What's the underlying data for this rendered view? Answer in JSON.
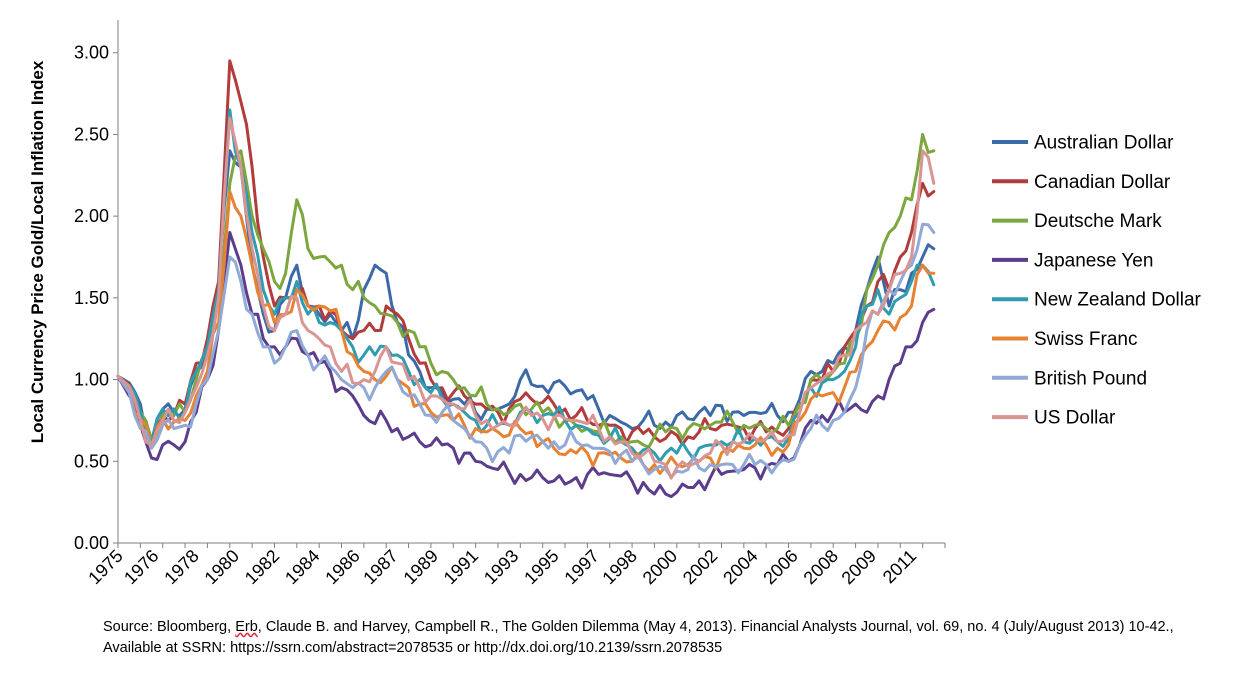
{
  "chart_data": {
    "type": "line",
    "title": "",
    "xlabel": "",
    "ylabel": "Local Currency Price Gold/Local Inflation Index",
    "ylim": [
      0,
      3.2
    ],
    "yticks": [
      "0.00",
      "0.50",
      "1.00",
      "1.50",
      "2.00",
      "2.50",
      "3.00"
    ],
    "ytick_values": [
      0,
      0.5,
      1.0,
      1.5,
      2.0,
      2.5,
      3.0
    ],
    "xlim": [
      1975.0,
      2012.0
    ],
    "xtick_labels": [
      "1975",
      "1976",
      "1978",
      "1980",
      "1982",
      "1984",
      "1986",
      "1987",
      "1989",
      "1991",
      "1993",
      "1995",
      "1997",
      "1998",
      "2000",
      "2002",
      "2004",
      "2006",
      "2008",
      "2009",
      "2011"
    ],
    "xtick_values": [
      1975.0,
      1976.6,
      1978.4,
      1980.2,
      1982.0,
      1983.8,
      1985.6,
      1987.3,
      1989.1,
      1990.9,
      1992.7,
      1994.5,
      1996.3,
      1998.0,
      1999.8,
      2001.6,
      2003.4,
      2005.2,
      2007.0,
      2008.7,
      2010.5
    ],
    "grid": false,
    "legend_position": "right",
    "x": [
      1975.0,
      1975.5,
      1976.0,
      1976.5,
      1977.0,
      1977.5,
      1978.0,
      1978.5,
      1979.0,
      1979.5,
      1980.0,
      1980.5,
      1981.0,
      1981.5,
      1982.0,
      1982.5,
      1983.0,
      1983.5,
      1984.0,
      1984.5,
      1985.0,
      1985.5,
      1986.0,
      1986.5,
      1987.0,
      1987.5,
      1988.0,
      1988.5,
      1989.0,
      1989.5,
      1990.0,
      1990.5,
      1991.0,
      1991.5,
      1992.0,
      1992.5,
      1993.0,
      1993.5,
      1994.0,
      1994.5,
      1995.0,
      1995.5,
      1996.0,
      1996.5,
      1997.0,
      1997.5,
      1998.0,
      1998.5,
      1999.0,
      1999.5,
      2000.0,
      2000.5,
      2001.0,
      2001.5,
      2002.0,
      2002.5,
      2003.0,
      2003.5,
      2004.0,
      2004.5,
      2005.0,
      2005.5,
      2006.0,
      2006.5,
      2007.0,
      2007.5,
      2008.0,
      2008.5,
      2009.0,
      2009.5,
      2010.0,
      2010.5,
      2011.0,
      2011.5
    ],
    "series": [
      {
        "name": "Australian Dollar",
        "color": "#3c6aa9",
        "values": [
          1.02,
          0.98,
          0.85,
          0.62,
          0.82,
          0.8,
          0.82,
          1.05,
          1.2,
          1.55,
          2.4,
          2.3,
          1.7,
          1.4,
          1.3,
          1.5,
          1.7,
          1.45,
          1.4,
          1.4,
          1.3,
          1.25,
          1.55,
          1.7,
          1.65,
          1.35,
          1.15,
          1.05,
          0.95,
          0.92,
          0.88,
          0.85,
          0.8,
          0.82,
          0.82,
          0.85,
          1.0,
          0.97,
          0.96,
          0.98,
          0.96,
          0.93,
          0.88,
          0.82,
          0.78,
          0.74,
          0.7,
          0.75,
          0.72,
          0.74,
          0.78,
          0.76,
          0.8,
          0.78,
          0.84,
          0.8,
          0.78,
          0.8,
          0.8,
          0.78,
          0.8,
          0.88,
          1.05,
          1.05,
          1.1,
          1.2,
          1.3,
          1.55,
          1.75,
          1.45,
          1.55,
          1.65,
          1.75,
          1.8
        ]
      },
      {
        "name": "Canadian Dollar",
        "color": "#b23b3b",
        "values": [
          1.02,
          0.97,
          0.78,
          0.6,
          0.78,
          0.78,
          0.85,
          1.1,
          1.25,
          1.6,
          2.95,
          2.7,
          2.3,
          1.75,
          1.45,
          1.5,
          1.55,
          1.45,
          1.45,
          1.42,
          1.3,
          1.25,
          1.3,
          1.3,
          1.45,
          1.4,
          1.25,
          1.1,
          1.0,
          0.95,
          0.92,
          0.9,
          0.85,
          0.82,
          0.8,
          0.82,
          0.88,
          0.88,
          0.86,
          0.85,
          0.82,
          0.78,
          0.75,
          0.72,
          0.72,
          0.7,
          0.68,
          0.67,
          0.65,
          0.64,
          0.66,
          0.65,
          0.68,
          0.7,
          0.72,
          0.72,
          0.7,
          0.7,
          0.68,
          0.68,
          0.7,
          0.85,
          1.0,
          1.0,
          1.05,
          1.2,
          1.3,
          1.45,
          1.6,
          1.55,
          1.75,
          1.9,
          2.2,
          2.15
        ]
      },
      {
        "name": "Deutsche Mark",
        "color": "#7ca73e",
        "values": [
          1.02,
          0.95,
          0.8,
          0.63,
          0.8,
          0.78,
          0.8,
          1.0,
          1.2,
          1.5,
          2.2,
          2.4,
          2.0,
          1.8,
          1.6,
          1.65,
          2.1,
          1.8,
          1.75,
          1.72,
          1.7,
          1.55,
          1.5,
          1.45,
          1.4,
          1.35,
          1.3,
          1.2,
          1.1,
          1.05,
          1.0,
          0.95,
          0.9,
          0.85,
          0.82,
          0.8,
          0.85,
          0.82,
          0.8,
          0.78,
          0.75,
          0.72,
          0.7,
          0.68,
          0.66,
          0.65,
          0.62,
          0.6,
          0.65,
          0.68,
          0.7,
          0.7,
          0.72,
          0.72,
          0.74,
          0.74,
          0.72,
          0.72,
          0.7,
          0.7,
          0.72,
          0.85,
          1.0,
          1.0,
          1.05,
          1.1,
          1.25,
          1.55,
          1.7,
          1.9,
          2.0,
          2.1,
          2.5,
          2.4
        ]
      },
      {
        "name": "Japanese Yen",
        "color": "#5b3d8c",
        "values": [
          1.02,
          0.9,
          0.72,
          0.52,
          0.6,
          0.6,
          0.62,
          0.8,
          1.0,
          1.3,
          1.9,
          1.7,
          1.4,
          1.25,
          1.2,
          1.2,
          1.25,
          1.15,
          1.1,
          1.05,
          0.95,
          0.9,
          0.78,
          0.73,
          0.75,
          0.7,
          0.65,
          0.62,
          0.6,
          0.6,
          0.58,
          0.55,
          0.5,
          0.47,
          0.45,
          0.43,
          0.42,
          0.4,
          0.4,
          0.38,
          0.36,
          0.4,
          0.42,
          0.42,
          0.42,
          0.41,
          0.38,
          0.37,
          0.3,
          0.3,
          0.31,
          0.34,
          0.38,
          0.4,
          0.42,
          0.44,
          0.45,
          0.46,
          0.47,
          0.48,
          0.5,
          0.6,
          0.75,
          0.78,
          0.8,
          0.8,
          0.85,
          0.8,
          0.9,
          1.0,
          1.1,
          1.2,
          1.35,
          1.43
        ]
      },
      {
        "name": "New Zealand Dollar",
        "color": "#2f9cb0",
        "values": [
          1.02,
          0.96,
          0.8,
          0.6,
          0.82,
          0.82,
          0.8,
          1.05,
          1.2,
          1.55,
          2.65,
          2.3,
          1.9,
          1.55,
          1.4,
          1.5,
          1.6,
          1.4,
          1.35,
          1.35,
          1.3,
          1.2,
          1.15,
          1.15,
          1.2,
          1.15,
          1.05,
          1.0,
          0.92,
          0.88,
          0.85,
          0.8,
          0.75,
          0.72,
          0.72,
          0.72,
          0.8,
          0.8,
          0.78,
          0.78,
          0.75,
          0.72,
          0.7,
          0.66,
          0.64,
          0.62,
          0.58,
          0.57,
          0.55,
          0.55,
          0.55,
          0.56,
          0.58,
          0.6,
          0.62,
          0.62,
          0.62,
          0.64,
          0.64,
          0.62,
          0.64,
          0.8,
          0.95,
          0.98,
          1.0,
          1.05,
          1.2,
          1.45,
          1.55,
          1.4,
          1.5,
          1.6,
          1.7,
          1.58
        ]
      },
      {
        "name": "Swiss Franc",
        "color": "#e68232",
        "values": [
          1.02,
          0.94,
          0.76,
          0.58,
          0.76,
          0.74,
          0.75,
          0.9,
          1.05,
          1.35,
          2.15,
          2.0,
          1.7,
          1.45,
          1.35,
          1.4,
          1.55,
          1.45,
          1.45,
          1.42,
          1.3,
          1.15,
          1.05,
          1.0,
          1.02,
          1.0,
          0.95,
          0.85,
          0.8,
          0.78,
          0.75,
          0.72,
          0.7,
          0.68,
          0.68,
          0.66,
          0.7,
          0.68,
          0.62,
          0.58,
          0.54,
          0.55,
          0.55,
          0.55,
          0.54,
          0.52,
          0.5,
          0.48,
          0.48,
          0.47,
          0.48,
          0.48,
          0.5,
          0.52,
          0.55,
          0.56,
          0.58,
          0.6,
          0.6,
          0.58,
          0.6,
          0.75,
          0.88,
          0.9,
          0.92,
          0.95,
          1.05,
          1.2,
          1.3,
          1.35,
          1.38,
          1.45,
          1.7,
          1.65
        ]
      },
      {
        "name": "British Pound",
        "color": "#90a9d6",
        "values": [
          1.02,
          0.92,
          0.7,
          0.58,
          0.72,
          0.7,
          0.72,
          0.85,
          1.0,
          1.3,
          1.75,
          1.6,
          1.4,
          1.2,
          1.1,
          1.2,
          1.3,
          1.15,
          1.1,
          1.08,
          1.0,
          0.95,
          0.95,
          0.95,
          1.05,
          1.0,
          0.9,
          0.85,
          0.78,
          0.8,
          0.75,
          0.7,
          0.62,
          0.58,
          0.56,
          0.55,
          0.66,
          0.65,
          0.62,
          0.62,
          0.6,
          0.62,
          0.6,
          0.58,
          0.56,
          0.54,
          0.5,
          0.48,
          0.45,
          0.45,
          0.44,
          0.45,
          0.46,
          0.48,
          0.48,
          0.48,
          0.48,
          0.48,
          0.48,
          0.48,
          0.5,
          0.6,
          0.7,
          0.72,
          0.75,
          0.8,
          0.95,
          1.3,
          1.4,
          1.55,
          1.6,
          1.7,
          1.95,
          1.9
        ]
      },
      {
        "name": "US Dollar",
        "color": "#d99494",
        "values": [
          1.02,
          0.96,
          0.75,
          0.6,
          0.75,
          0.75,
          0.8,
          0.95,
          1.15,
          1.5,
          2.6,
          2.3,
          1.8,
          1.45,
          1.3,
          1.4,
          1.5,
          1.3,
          1.25,
          1.2,
          1.05,
          0.98,
          1.0,
          1.05,
          1.2,
          1.1,
          1.0,
          0.95,
          0.9,
          0.88,
          0.85,
          0.82,
          0.78,
          0.75,
          0.72,
          0.72,
          0.78,
          0.78,
          0.76,
          0.77,
          0.76,
          0.75,
          0.73,
          0.7,
          0.65,
          0.62,
          0.55,
          0.54,
          0.5,
          0.48,
          0.46,
          0.47,
          0.5,
          0.55,
          0.6,
          0.62,
          0.62,
          0.64,
          0.64,
          0.62,
          0.66,
          0.8,
          0.95,
          1.0,
          1.05,
          1.15,
          1.3,
          1.35,
          1.4,
          1.55,
          1.65,
          1.75,
          2.4,
          2.2
        ]
      }
    ]
  },
  "source_note": {
    "prefix": "Source: Bloomberg, ",
    "erb": "Erb",
    "rest": ", Claude B. and Harvey, Campbell R., The Golden Dilemma (May 4, 2013). Financial Analysts Journal, vol. 69, no. 4 (July/August 2013) 10-42., Available at SSRN: https://ssrn.com/abstract=2078535 or http://dx.doi.org/10.2139/ssrn.2078535"
  }
}
